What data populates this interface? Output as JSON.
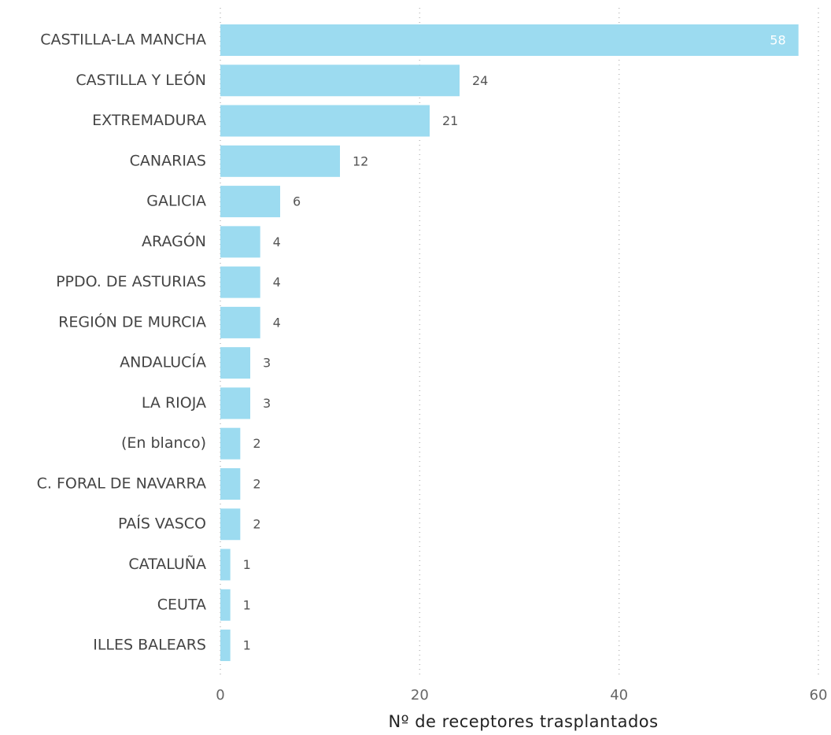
{
  "chart_data": {
    "type": "barh",
    "xlabel": "Nº de receptores trasplantados",
    "categories": [
      "CASTILLA-LA MANCHA",
      "CASTILLA Y LEÓN",
      "EXTREMADURA",
      "CANARIAS",
      "GALICIA",
      "ARAGÓN",
      "PPDO. DE ASTURIAS",
      "REGIÓN DE MURCIA",
      "ANDALUCÍA",
      "LA RIOJA",
      "(En blanco)",
      "C. FORAL DE NAVARRA",
      "PAÍS VASCO",
      "CATALUÑA",
      "CEUTA",
      "ILLES BALEARS"
    ],
    "values": [
      58,
      24,
      21,
      12,
      6,
      4,
      4,
      4,
      3,
      3,
      2,
      2,
      2,
      1,
      1,
      1
    ],
    "color": "#9cdbf0",
    "xlim": [
      0,
      60
    ],
    "xticks": [
      0,
      20,
      40,
      60
    ],
    "grid": true
  }
}
